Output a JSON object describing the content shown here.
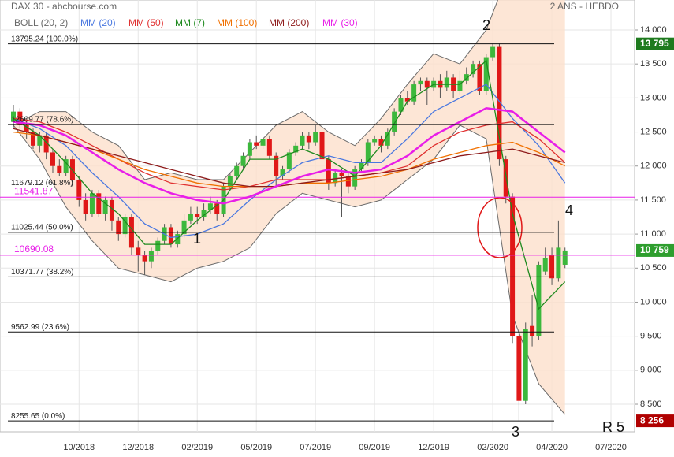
{
  "chart_data": {
    "type": "candlestick",
    "title": "DAX 30 - abcbourse.com",
    "subtitle": "2 ANS - HEBDO",
    "categories": [
      null,
      null,
      null,
      null,
      null,
      null,
      null,
      null,
      null,
      null,
      "10/2018",
      null,
      null,
      null,
      null,
      null,
      null,
      null,
      null,
      "12/2018",
      null,
      null,
      null,
      null,
      null,
      null,
      null,
      null,
      "02/2019",
      null,
      null,
      null,
      null,
      null,
      null,
      null,
      null,
      "05/2019",
      null,
      null,
      null,
      null,
      null,
      null,
      null,
      null,
      "07/2019",
      null,
      null,
      null,
      null,
      null,
      null,
      null,
      null,
      "09/2019",
      null,
      null,
      null,
      null,
      null,
      null,
      null,
      null,
      "12/2019",
      null,
      null,
      null,
      null,
      null,
      null,
      null,
      null,
      "02/2020",
      null,
      null,
      null,
      null,
      null,
      null,
      null,
      null,
      "04/2020",
      null,
      null,
      null,
      null,
      null,
      null,
      null,
      null,
      "07/2020"
    ],
    "open": [
      12650,
      12800,
      12600,
      12500,
      12300,
      12450,
      12200,
      12000,
      11900,
      12100,
      11800,
      11500,
      11300,
      11600,
      11300,
      11500,
      11200,
      11000,
      11250,
      10800,
      10700,
      10600,
      10750,
      10900,
      11100,
      10850,
      11000,
      11200,
      11300,
      11250,
      11350,
      11450,
      11300,
      11700,
      11850,
      12000,
      12150,
      12350,
      12300,
      12400,
      12150,
      11850,
      11950,
      12200,
      12300,
      12450,
      12350,
      12500,
      12100,
      11750,
      11900,
      11850,
      11700,
      11950,
      12050,
      12350,
      12400,
      12300,
      12500,
      12800,
      13000,
      12950,
      13200,
      13250,
      13150,
      13250,
      13150,
      13300,
      13100,
      13250,
      13350,
      13500,
      13100,
      13600,
      13750,
      12100,
      11550,
      9500,
      8550,
      9650,
      9500,
      10450,
      10700,
      10350,
      10550,
      null,
      null,
      null,
      null,
      null,
      null,
      null
    ],
    "high": [
      12900,
      12850,
      12700,
      12550,
      12500,
      12500,
      12250,
      12100,
      12150,
      12150,
      11850,
      11600,
      11650,
      11650,
      11550,
      11550,
      11250,
      11300,
      11300,
      10900,
      10750,
      10800,
      10950,
      11150,
      11150,
      11050,
      11300,
      11400,
      11400,
      11450,
      11550,
      11500,
      11750,
      11900,
      12050,
      12200,
      12400,
      12450,
      12450,
      12450,
      12200,
      12000,
      12250,
      12350,
      12500,
      12500,
      12600,
      12550,
      12150,
      11950,
      11950,
      11900,
      12000,
      12100,
      12400,
      12450,
      12450,
      12550,
      12850,
      13050,
      13100,
      13250,
      13300,
      13300,
      13300,
      13350,
      13400,
      13350,
      13400,
      13450,
      13550,
      13550,
      13650,
      13800,
      13800,
      12150,
      11600,
      9600,
      9700,
      10100,
      10600,
      10800,
      10800,
      11200,
      10800,
      null,
      null,
      null,
      null,
      null,
      null,
      null
    ],
    "low": [
      12550,
      12550,
      12400,
      12250,
      12200,
      12100,
      11900,
      11850,
      11850,
      11700,
      11400,
      11200,
      11250,
      11250,
      11200,
      11050,
      10900,
      10950,
      10700,
      10450,
      10400,
      10500,
      10700,
      10850,
      10800,
      10800,
      10950,
      11150,
      11150,
      11200,
      11300,
      11200,
      11250,
      11650,
      11800,
      11950,
      12100,
      12250,
      12250,
      12100,
      11700,
      11800,
      11900,
      12150,
      12250,
      12250,
      12300,
      12000,
      11650,
      11700,
      11250,
      11600,
      11650,
      11900,
      12000,
      12300,
      12200,
      12250,
      12450,
      12750,
      12900,
      12900,
      13100,
      12900,
      13100,
      13000,
      13100,
      13000,
      13050,
      13200,
      13300,
      13050,
      13050,
      13550,
      12000,
      11450,
      9400,
      8256,
      8500,
      9350,
      9450,
      10400,
      10250,
      10300,
      10500,
      null,
      null,
      null,
      null,
      null,
      null,
      null
    ],
    "close": [
      12800,
      12600,
      12500,
      12300,
      12450,
      12200,
      12000,
      11900,
      12100,
      11800,
      11500,
      11300,
      11600,
      11300,
      11500,
      11200,
      11000,
      11250,
      10800,
      10700,
      10600,
      10750,
      10900,
      11100,
      10850,
      11000,
      11200,
      11300,
      11250,
      11350,
      11450,
      11300,
      11700,
      11850,
      12000,
      12150,
      12350,
      12300,
      12400,
      12150,
      11850,
      11950,
      12200,
      12300,
      12450,
      12350,
      12500,
      12100,
      11750,
      11900,
      11850,
      11700,
      11950,
      12050,
      12350,
      12400,
      12300,
      12500,
      12800,
      13000,
      12950,
      13200,
      13250,
      13150,
      13250,
      13150,
      13300,
      13100,
      13250,
      13350,
      13500,
      13100,
      13600,
      13750,
      12100,
      11550,
      9500,
      8550,
      9600,
      9500,
      10550,
      10650,
      10350,
      10800,
      10759,
      null,
      null,
      null,
      null,
      null,
      null,
      null
    ],
    "up_color": "#3cb83c",
    "down_color": "#e01818",
    "bollinger": {
      "name": "BOLL (20, 2)",
      "color": "#6a6a6a",
      "fill": "#fde0cc",
      "x": [
        0,
        4,
        8,
        12,
        16,
        20,
        24,
        28,
        32,
        36,
        40,
        44,
        48,
        52,
        56,
        60,
        64,
        68,
        72,
        76,
        80,
        84
      ],
      "upper": [
        12600,
        12800,
        12800,
        12500,
        12300,
        11800,
        11900,
        11800,
        11800,
        12200,
        12600,
        12800,
        12500,
        12300,
        12700,
        13200,
        13650,
        13500,
        14000,
        15000,
        15300,
        15200
      ],
      "lower": [
        12600,
        12100,
        11400,
        10900,
        10500,
        10400,
        10300,
        10500,
        10600,
        10800,
        11300,
        11600,
        11500,
        11400,
        11500,
        11800,
        12100,
        12600,
        12400,
        9800,
        8800,
        8350
      ]
    },
    "lines": [
      {
        "name": "MM (20)",
        "color": "#4a78e0",
        "x": [
          0,
          4,
          8,
          12,
          16,
          20,
          24,
          28,
          32,
          36,
          40,
          44,
          48,
          52,
          56,
          60,
          64,
          68,
          72,
          76,
          80,
          84
        ],
        "values": [
          12700,
          12550,
          12300,
          11900,
          11550,
          11150,
          10950,
          11000,
          11150,
          11500,
          11800,
          12050,
          12150,
          12050,
          12050,
          12400,
          12800,
          13000,
          13200,
          12700,
          12300,
          11750
        ]
      },
      {
        "name": "MM (50)",
        "color": "#e03030",
        "x": [
          0,
          4,
          8,
          12,
          16,
          20,
          24,
          28,
          32,
          36,
          40,
          44,
          48,
          52,
          56,
          60,
          64,
          68,
          72,
          76,
          80,
          84
        ],
        "values": [
          12700,
          12650,
          12500,
          12300,
          12100,
          11900,
          11750,
          11700,
          11650,
          11700,
          11800,
          11800,
          11800,
          11850,
          11900,
          12000,
          12300,
          12500,
          12600,
          12650,
          12400,
          12050
        ]
      },
      {
        "name": "MM (7)",
        "color": "#1f8a1f",
        "x": [
          0,
          4,
          8,
          12,
          16,
          20,
          24,
          28,
          32,
          36,
          40,
          44,
          48,
          52,
          56,
          60,
          64,
          68,
          72,
          76,
          80,
          84
        ],
        "values": [
          12700,
          12450,
          12050,
          11600,
          11300,
          10850,
          10850,
          11200,
          11500,
          12100,
          12100,
          12250,
          12100,
          11850,
          12300,
          12950,
          13200,
          13200,
          13550,
          11300,
          9900,
          10300
        ]
      },
      {
        "name": "MM (100)",
        "color": "#f07000",
        "x": [
          0,
          4,
          8,
          12,
          16,
          20,
          24,
          28,
          32,
          36,
          40,
          44,
          48,
          52,
          56,
          60,
          64,
          68,
          72,
          76,
          80,
          84
        ],
        "values": [
          12500,
          12450,
          12350,
          12250,
          12100,
          11950,
          11850,
          11750,
          11700,
          11700,
          11700,
          11750,
          11750,
          11800,
          11850,
          11950,
          12100,
          12200,
          12300,
          12350,
          12200,
          12000
        ]
      },
      {
        "name": "MM (200)",
        "color": "#8e1a1a",
        "x": [
          0,
          4,
          8,
          12,
          16,
          20,
          24,
          28,
          32,
          36,
          40,
          44,
          48,
          52,
          56,
          60,
          64,
          68,
          72,
          76,
          80,
          84
        ],
        "values": [
          12550,
          12450,
          12350,
          12250,
          12150,
          12050,
          11950,
          11850,
          11750,
          11700,
          11700,
          11750,
          11800,
          11850,
          11900,
          11950,
          12050,
          12150,
          12200,
          12250,
          12150,
          12050
        ]
      },
      {
        "name": "MM (30)",
        "color": "#e81ee8",
        "x": [
          0,
          4,
          8,
          12,
          16,
          20,
          24,
          28,
          32,
          36,
          40,
          44,
          48,
          52,
          56,
          60,
          64,
          68,
          72,
          76,
          80,
          84
        ],
        "values": [
          12650,
          12600,
          12450,
          12200,
          11950,
          11750,
          11600,
          11500,
          11450,
          11550,
          11700,
          11850,
          11950,
          11900,
          11950,
          12150,
          12450,
          12650,
          12850,
          12800,
          12500,
          12200
        ]
      }
    ],
    "fib_levels": [
      {
        "value": 13795.24,
        "label": "13795.24  (100.0%)"
      },
      {
        "value": 12609.77,
        "label": "12609.77  (78.6%)"
      },
      {
        "value": 11679.12,
        "label": "11679.12  (61.8%)"
      },
      {
        "value": 11025.44,
        "label": "11025.44  (50.0%)"
      },
      {
        "value": 10371.77,
        "label": "10371.77  (38.2%)"
      },
      {
        "value": 9562.99,
        "label": "9562.99  (23.6%)"
      },
      {
        "value": 8255.65,
        "label": "8255.65  (0.0%)"
      }
    ],
    "levels": [
      {
        "value": 11541.87,
        "color": "#e81ee8"
      },
      {
        "value": 10690.08,
        "color": "#e81ee8"
      }
    ],
    "price_tags": [
      {
        "value": 13795,
        "label": "13 795",
        "color": "#1e7a1e"
      },
      {
        "value": 10759,
        "label": "10 759",
        "color": "#2e9e2e"
      },
      {
        "value": 8256,
        "label": "8 256",
        "color": "#b00000"
      }
    ],
    "annotations": [
      "1",
      "2",
      "3",
      "4",
      "R 5"
    ],
    "ylim": [
      8095,
      14440
    ],
    "yticks": [
      {
        "value": 8500,
        "label": "8 500"
      },
      {
        "value": 9000,
        "label": "9 000"
      },
      {
        "value": 9500,
        "label": "9 500"
      },
      {
        "value": 10000,
        "label": "10 000"
      },
      {
        "value": 10500,
        "label": "10 500"
      },
      {
        "value": 11000,
        "label": "11 000"
      },
      {
        "value": 11500,
        "label": "11 500"
      },
      {
        "value": 12000,
        "label": "12 000"
      },
      {
        "value": 12500,
        "label": "12 500"
      },
      {
        "value": 13000,
        "label": "13 000"
      },
      {
        "value": 13500,
        "label": "13 500"
      },
      {
        "value": 14000,
        "label": "14 000"
      }
    ],
    "grid": true
  }
}
